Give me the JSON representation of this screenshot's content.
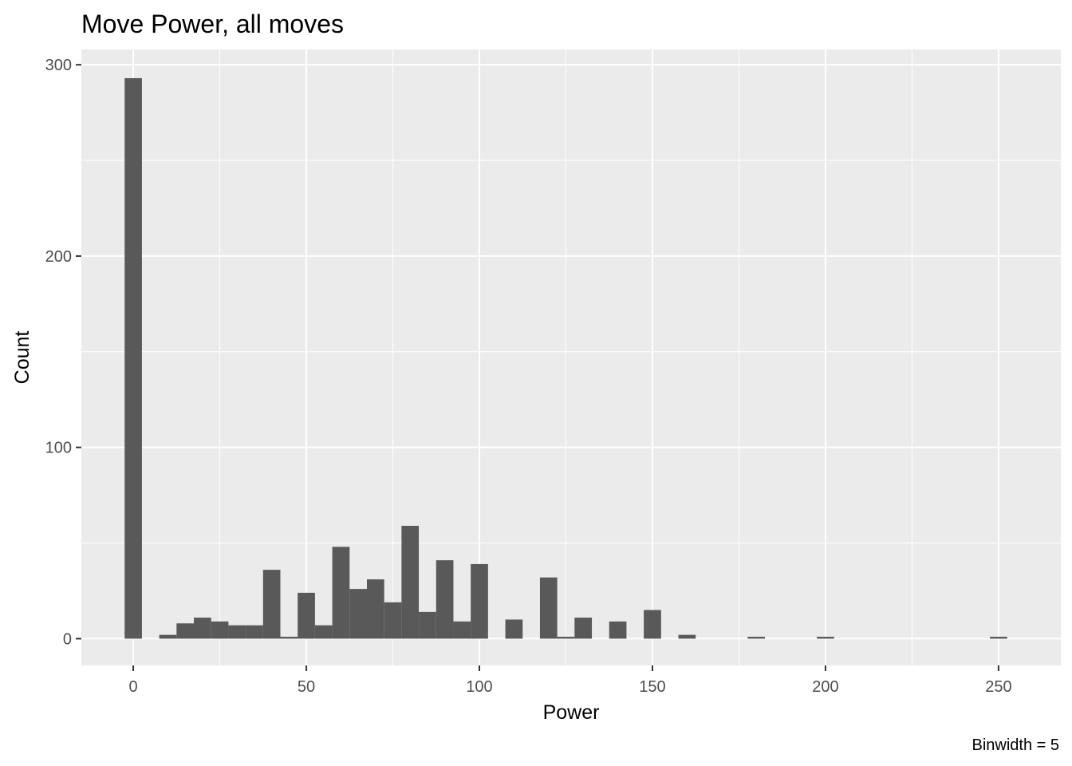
{
  "chart_data": {
    "type": "bar",
    "title": "Move Power, all moves",
    "xlabel": "Power",
    "ylabel": "Count",
    "caption": "Binwidth = 5",
    "binwidth": 5,
    "xlim": [
      -15,
      268
    ],
    "ylim": [
      -14,
      308
    ],
    "x_ticks": [
      0,
      50,
      100,
      150,
      200,
      250
    ],
    "x_tick_labels": [
      "0",
      "50",
      "100",
      "150",
      "200",
      "250"
    ],
    "y_ticks": [
      0,
      100,
      200,
      300
    ],
    "y_tick_labels": [
      "0",
      "100",
      "200",
      "300"
    ],
    "grid": true,
    "bar_color": "#595959",
    "panel_color": "#ebebeb",
    "grid_color": "#ffffff",
    "bins": [
      {
        "x": 0,
        "count": 293
      },
      {
        "x": 10,
        "count": 2
      },
      {
        "x": 15,
        "count": 8
      },
      {
        "x": 20,
        "count": 11
      },
      {
        "x": 25,
        "count": 9
      },
      {
        "x": 30,
        "count": 7
      },
      {
        "x": 35,
        "count": 7
      },
      {
        "x": 40,
        "count": 36
      },
      {
        "x": 45,
        "count": 1
      },
      {
        "x": 50,
        "count": 24
      },
      {
        "x": 55,
        "count": 7
      },
      {
        "x": 60,
        "count": 48
      },
      {
        "x": 65,
        "count": 26
      },
      {
        "x": 70,
        "count": 31
      },
      {
        "x": 75,
        "count": 19
      },
      {
        "x": 80,
        "count": 59
      },
      {
        "x": 85,
        "count": 14
      },
      {
        "x": 90,
        "count": 41
      },
      {
        "x": 95,
        "count": 9
      },
      {
        "x": 100,
        "count": 39
      },
      {
        "x": 110,
        "count": 10
      },
      {
        "x": 120,
        "count": 32
      },
      {
        "x": 125,
        "count": 1
      },
      {
        "x": 130,
        "count": 11
      },
      {
        "x": 140,
        "count": 9
      },
      {
        "x": 150,
        "count": 15
      },
      {
        "x": 160,
        "count": 2
      },
      {
        "x": 180,
        "count": 1
      },
      {
        "x": 200,
        "count": 1
      },
      {
        "x": 250,
        "count": 1
      }
    ]
  }
}
